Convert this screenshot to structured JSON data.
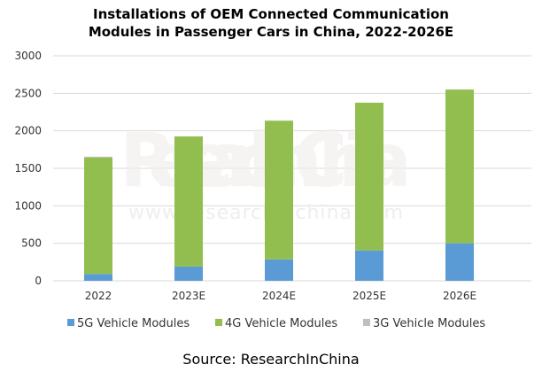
{
  "chart_data": {
    "type": "bar",
    "stacked": true,
    "title_line1": "Installations of OEM Connected Communication",
    "title_line2": "Modules in Passenger Cars in China, 2022-2026E",
    "categories": [
      "2022",
      "2023E",
      "2024E",
      "2025E",
      "2026E"
    ],
    "series": [
      {
        "name": "5G Vehicle Modules",
        "color": "#5B9BD5",
        "values": [
          90,
          190,
          285,
          405,
          500
        ]
      },
      {
        "name": "4G Vehicle Modules",
        "color": "#92BE50",
        "values": [
          1555,
          1735,
          1850,
          1970,
          2050
        ]
      },
      {
        "name": "3G Vehicle Modules",
        "color": "#BFBFBF",
        "values": [
          10,
          0,
          0,
          0,
          0
        ]
      }
    ],
    "ylim": [
      0,
      3000
    ],
    "yticks": [
      "0",
      "500",
      "1000",
      "1500",
      "2000",
      "2500",
      "3000"
    ],
    "grid": true,
    "legend": "bottom",
    "source": "Source: ResearchInChina",
    "watermark": [
      "ResearchInChina",
      "www.researchinchina.com"
    ]
  }
}
